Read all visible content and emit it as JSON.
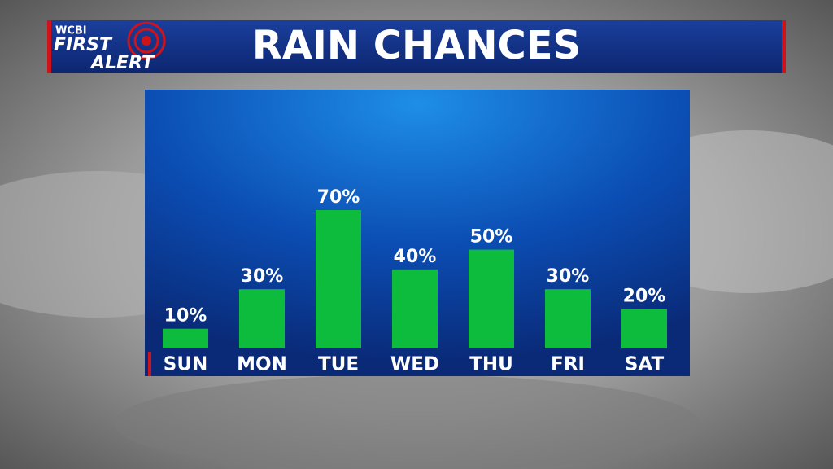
{
  "branding": {
    "station": "WCBI",
    "line1": "FIRST",
    "line2": "ALERT"
  },
  "chart_data": {
    "type": "bar",
    "title": "RAIN CHANCES",
    "categories": [
      "SUN",
      "MON",
      "TUE",
      "WED",
      "THU",
      "FRI",
      "SAT"
    ],
    "values": [
      10,
      30,
      70,
      40,
      50,
      30,
      20
    ],
    "value_labels": [
      "10%",
      "30%",
      "70%",
      "40%",
      "50%",
      "30%",
      "20%"
    ],
    "color": "#0dbb3d"
  }
}
